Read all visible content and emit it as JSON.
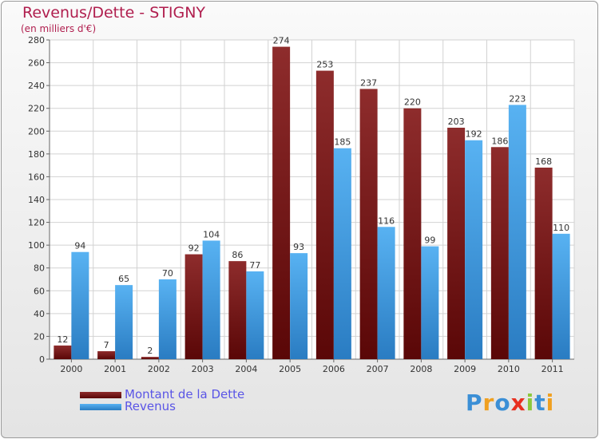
{
  "chart_data": {
    "type": "bar",
    "title": "Revenus/Dette - STIGNY",
    "subtitle": "(en milliers d'€)",
    "categories": [
      "2000",
      "2001",
      "2002",
      "2003",
      "2004",
      "2005",
      "2006",
      "2007",
      "2008",
      "2009",
      "2010",
      "2011"
    ],
    "series": [
      {
        "name": "Montant de la Dette",
        "color": "#7a1a1a",
        "values": [
          12,
          7,
          2,
          92,
          86,
          274,
          253,
          237,
          220,
          203,
          186,
          168
        ]
      },
      {
        "name": "Revenus",
        "color": "#3d9ae8",
        "values": [
          94,
          65,
          70,
          104,
          77,
          93,
          185,
          116,
          99,
          192,
          223,
          110
        ]
      }
    ],
    "ylim": [
      0,
      280
    ],
    "yticks": [
      0,
      20,
      40,
      60,
      80,
      100,
      120,
      140,
      160,
      180,
      200,
      220,
      240,
      260,
      280
    ],
    "grid": true,
    "legend_position": "bottom-left"
  },
  "logo": {
    "letters": [
      "P",
      "r",
      "o",
      "x",
      "i",
      "t",
      "i"
    ]
  }
}
